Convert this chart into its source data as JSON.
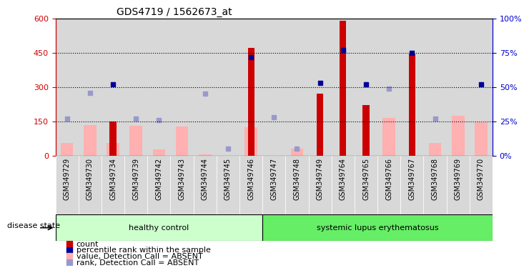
{
  "title": "GDS4719 / 1562673_at",
  "samples": [
    "GSM349729",
    "GSM349730",
    "GSM349734",
    "GSM349739",
    "GSM349742",
    "GSM349743",
    "GSM349744",
    "GSM349745",
    "GSM349746",
    "GSM349747",
    "GSM349748",
    "GSM349749",
    "GSM349764",
    "GSM349765",
    "GSM349766",
    "GSM349767",
    "GSM349768",
    "GSM349769",
    "GSM349770"
  ],
  "n_healthy": 9,
  "n_lupus": 10,
  "count": [
    0,
    0,
    150,
    0,
    0,
    0,
    0,
    0,
    470,
    0,
    0,
    270,
    590,
    220,
    0,
    445,
    0,
    0,
    0
  ],
  "percentile_rank": [
    null,
    null,
    52,
    null,
    null,
    null,
    null,
    null,
    72,
    null,
    null,
    53,
    77,
    52,
    null,
    75,
    null,
    null,
    52
  ],
  "value_absent": [
    55,
    135,
    55,
    130,
    28,
    128,
    5,
    0,
    125,
    0,
    30,
    0,
    0,
    0,
    165,
    0,
    55,
    175,
    148
  ],
  "rank_absent": [
    27,
    46,
    null,
    27,
    26,
    null,
    45,
    5,
    null,
    28,
    5,
    null,
    null,
    null,
    49,
    null,
    27,
    null,
    null
  ],
  "ylim_left": [
    0,
    600
  ],
  "ylim_right": [
    0,
    100
  ],
  "yticks_left": [
    0,
    150,
    300,
    450,
    600
  ],
  "yticks_right": [
    0,
    25,
    50,
    75,
    100
  ],
  "ytick_labels_left": [
    "0",
    "150",
    "300",
    "450",
    "600"
  ],
  "ytick_labels_right": [
    "0%",
    "25%",
    "50%",
    "75%",
    "100%"
  ],
  "left_color": "#cc0000",
  "right_color": "#0000cc",
  "bar_color_dark": "#cc0000",
  "bar_color_pink": "#ffb0b0",
  "dot_blue_dark": "#000099",
  "dot_blue_light": "#9999cc",
  "group_color_healthy": "#ccffcc",
  "group_color_lupus": "#66ee66",
  "disease_state_label": "disease state",
  "group_labels": [
    "healthy control",
    "systemic lupus erythematosus"
  ],
  "legend_items": [
    {
      "label": "count",
      "color": "#cc0000"
    },
    {
      "label": "percentile rank within the sample",
      "color": "#000099"
    },
    {
      "label": "value, Detection Call = ABSENT",
      "color": "#ffb0b0"
    },
    {
      "label": "rank, Detection Call = ABSENT",
      "color": "#9999cc"
    }
  ],
  "col_bg_color": "#d8d8d8",
  "background_color": "#ffffff"
}
